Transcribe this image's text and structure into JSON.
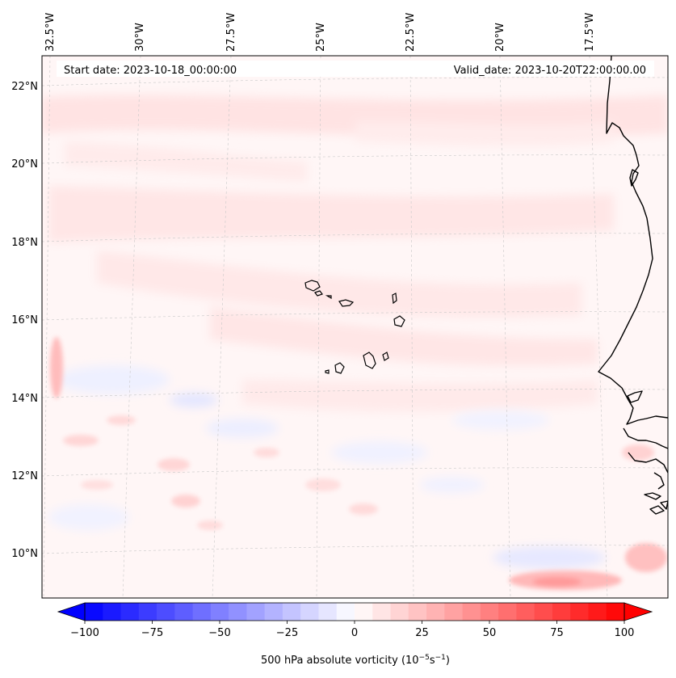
{
  "map": {
    "start_label": "Start date: 2023-10-18_00:00:00",
    "valid_label": "Valid_date: 2023-10-20T22:00:00.00",
    "lon_ticks": [
      "32.5°W",
      "30°W",
      "27.5°W",
      "25°W",
      "22.5°W",
      "20°W",
      "17.5°W"
    ],
    "lat_ticks": [
      "22°N",
      "20°N",
      "18°N",
      "16°N",
      "14°N",
      "12°N",
      "10°N"
    ],
    "gridlines": true,
    "coastlines": true,
    "field": "500 hPa absolute vorticity"
  },
  "colorbar": {
    "label": "500 hPa absolute vorticity (10",
    "label_exp1": "−5",
    "label_mid": "s",
    "label_exp2": "−1",
    "label_end": ")",
    "tick_labels": [
      "−100",
      "−75",
      "−50",
      "−25",
      "0",
      "25",
      "50",
      "75",
      "100"
    ],
    "vmin": -100,
    "vmax": 100,
    "levels": 30,
    "extend": "both",
    "cmap": "bwr",
    "colors": {
      "low": "#0000ff",
      "mid": "#ffffff",
      "high": "#ff0000"
    }
  }
}
